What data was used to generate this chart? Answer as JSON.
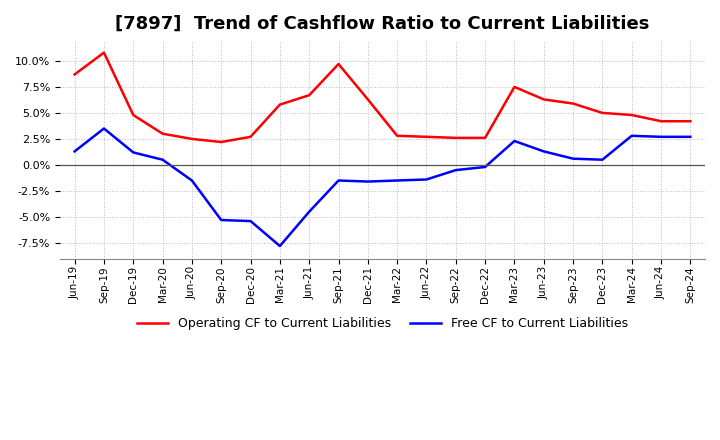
{
  "title": "[7897]  Trend of Cashflow Ratio to Current Liabilities",
  "x_labels": [
    "Jun-19",
    "Sep-19",
    "Dec-19",
    "Mar-20",
    "Jun-20",
    "Sep-20",
    "Dec-20",
    "Mar-21",
    "Jun-21",
    "Sep-21",
    "Dec-21",
    "Mar-22",
    "Jun-22",
    "Sep-22",
    "Dec-22",
    "Mar-23",
    "Jun-23",
    "Sep-23",
    "Dec-23",
    "Mar-24",
    "Jun-24",
    "Sep-24"
  ],
  "operating_cf": [
    8.7,
    10.8,
    4.8,
    3.0,
    2.5,
    2.2,
    2.7,
    5.8,
    6.7,
    9.7,
    6.3,
    2.8,
    2.7,
    2.6,
    2.6,
    7.5,
    6.3,
    5.9,
    5.0,
    4.8,
    4.2,
    4.2
  ],
  "free_cf": [
    1.3,
    3.5,
    1.2,
    0.5,
    -1.5,
    -5.3,
    -5.4,
    -7.8,
    -4.5,
    -1.5,
    -1.6,
    -1.5,
    -1.4,
    -0.5,
    -0.2,
    2.3,
    1.3,
    0.6,
    0.5,
    2.8,
    2.7,
    2.7
  ],
  "operating_color": "#ff0000",
  "free_color": "#0000ff",
  "ylim": [
    -9.0,
    12.0
  ],
  "yticks": [
    -7.5,
    -5.0,
    -2.5,
    0.0,
    2.5,
    5.0,
    7.5,
    10.0
  ],
  "background_color": "#ffffff",
  "grid_color": "#aaaaaa",
  "title_fontsize": 13,
  "legend_labels": [
    "Operating CF to Current Liabilities",
    "Free CF to Current Liabilities"
  ]
}
